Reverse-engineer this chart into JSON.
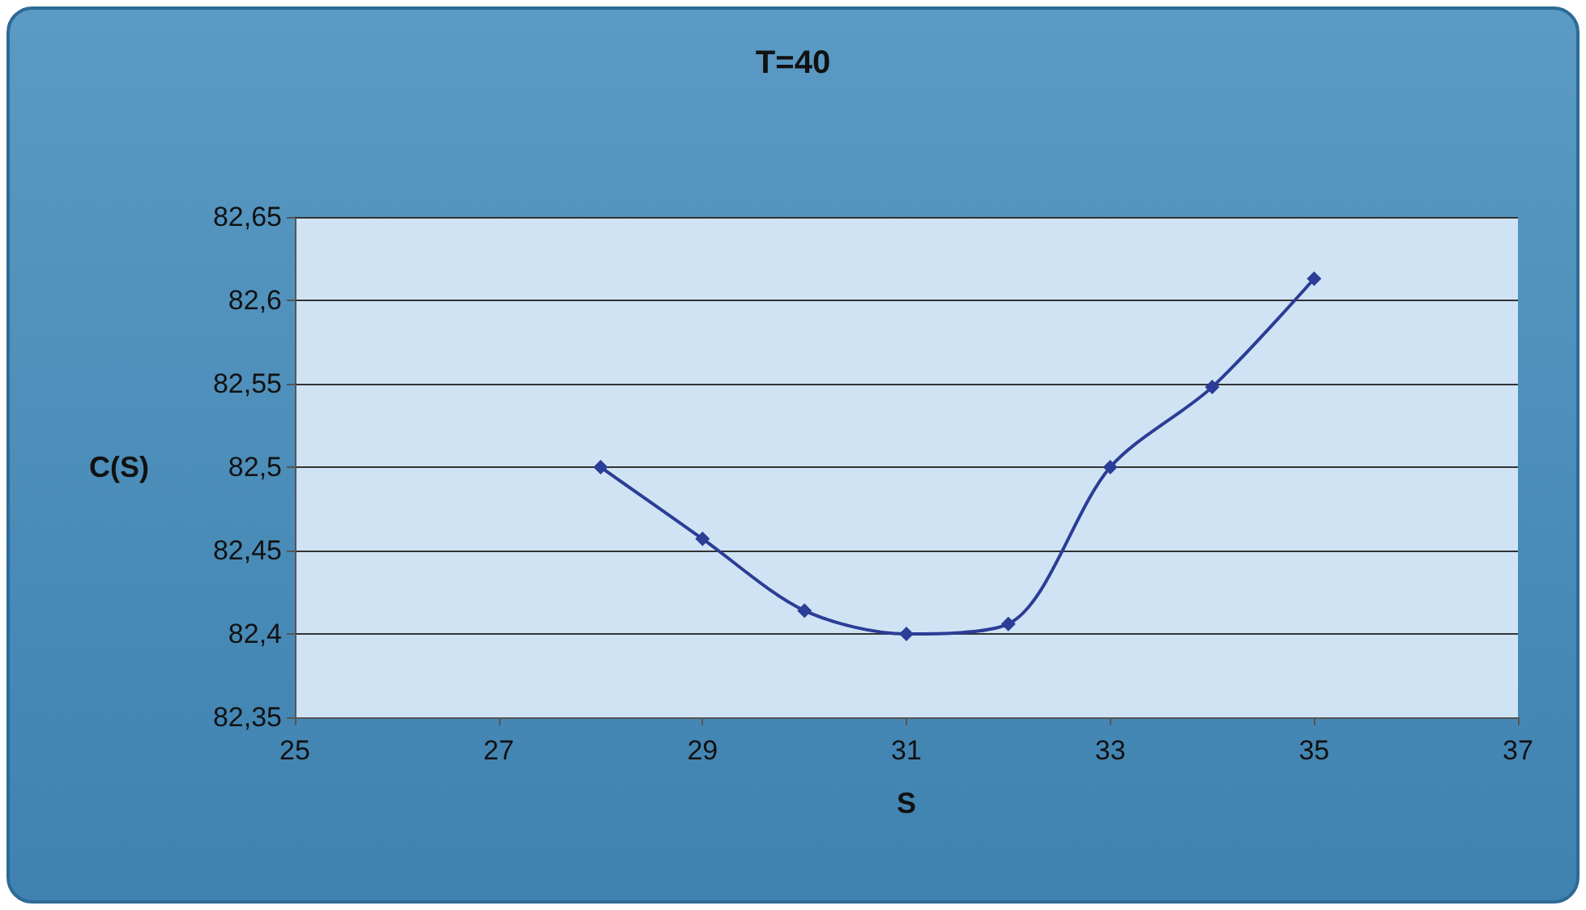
{
  "chart_data": {
    "type": "line",
    "title": "T=40",
    "xlabel": "S",
    "ylabel": "C(S)",
    "x": [
      28,
      29,
      30,
      31,
      32,
      33,
      34,
      35
    ],
    "series": [
      {
        "color": "#2b3d96",
        "values": [
          82.5,
          82.457,
          82.414,
          82.4,
          82.406,
          82.5,
          82.548,
          82.613
        ]
      }
    ],
    "xlim": [
      25,
      37
    ],
    "xticks": [
      25,
      27,
      29,
      31,
      33,
      35,
      37
    ],
    "ylim": [
      82.35,
      82.65
    ],
    "yticks": [
      {
        "value": 82.35,
        "label": "82,35"
      },
      {
        "value": 82.4,
        "label": "82,4"
      },
      {
        "value": 82.45,
        "label": "82,45"
      },
      {
        "value": 82.5,
        "label": "82,5"
      },
      {
        "value": 82.55,
        "label": "82,55"
      },
      {
        "value": 82.6,
        "label": "82,6"
      },
      {
        "value": 82.65,
        "label": "82,65"
      }
    ],
    "grid": "y",
    "marker": "diamond"
  }
}
